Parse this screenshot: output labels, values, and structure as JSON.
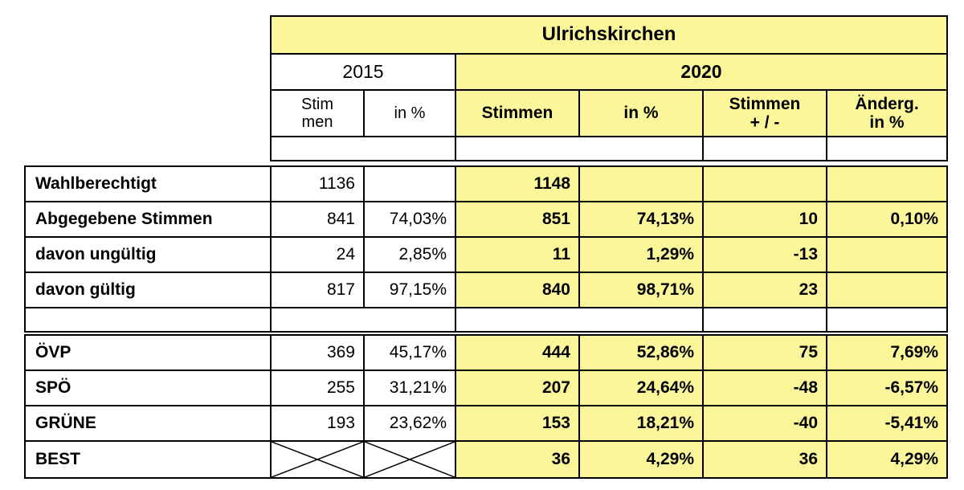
{
  "title": "Ulrichskirchen",
  "years": {
    "old": "2015",
    "new": "2020"
  },
  "subheaders": {
    "stimmen_old": "Stim\nmen",
    "pct_old": "in %",
    "stimmen_new": "Stimmen",
    "pct_new": "in %",
    "diff": "Stimmen\n+ / -",
    "change": "Änderg.\nin %"
  },
  "rows": [
    {
      "label": "Wahlberechtigt",
      "v2015": "1136",
      "p2015": "",
      "v2020": "1148",
      "p2020": "",
      "diff": "",
      "change": ""
    },
    {
      "label": "Abgegebene Stimmen",
      "v2015": "841",
      "p2015": "74,03%",
      "v2020": "851",
      "p2020": "74,13%",
      "diff": "10",
      "change": "0,10%"
    },
    {
      "label": "davon ungültig",
      "v2015": "24",
      "p2015": "2,85%",
      "v2020": "11",
      "p2020": "1,29%",
      "diff": "-13",
      "change": ""
    },
    {
      "label": "davon gültig",
      "v2015": "817",
      "p2015": "97,15%",
      "v2020": "840",
      "p2020": "98,71%",
      "diff": "23",
      "change": ""
    },
    {
      "label": "ÖVP",
      "v2015": "369",
      "p2015": "45,17%",
      "v2020": "444",
      "p2020": "52,86%",
      "diff": "75",
      "change": "7,69%"
    },
    {
      "label": "SPÖ",
      "v2015": "255",
      "p2015": "31,21%",
      "v2020": "207",
      "p2020": "24,64%",
      "diff": "-48",
      "change": "-6,57%"
    },
    {
      "label": "GRÜNE",
      "v2015": "193",
      "p2015": "23,62%",
      "v2020": "153",
      "p2020": "18,21%",
      "diff": "-40",
      "change": "-5,41%"
    },
    {
      "label": "BEST",
      "v2015": "",
      "p2015": "",
      "v2020": "36",
      "p2020": "4,29%",
      "diff": "36",
      "change": "4,29%"
    }
  ],
  "colors": {
    "highlight": "#fbf69a",
    "border": "#000000"
  },
  "icons": {
    "not_applicable": "cross-out-icon"
  }
}
